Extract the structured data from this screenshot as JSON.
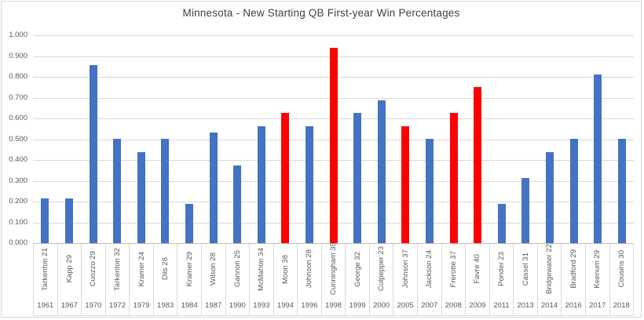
{
  "chart_data": {
    "type": "bar",
    "title": "Minnesota - New Starting QB First-year Win Percentages",
    "xlabel": "",
    "ylabel": "",
    "ylim": [
      0,
      1
    ],
    "grid": true,
    "legend_position": "none",
    "y_ticks": [
      {
        "value": 0.0,
        "label": "0.000"
      },
      {
        "value": 0.1,
        "label": "0.100"
      },
      {
        "value": 0.2,
        "label": "0.200"
      },
      {
        "value": 0.3,
        "label": "0.300"
      },
      {
        "value": 0.4,
        "label": "0.400"
      },
      {
        "value": 0.5,
        "label": "0.500"
      },
      {
        "value": 0.6,
        "label": "0.600"
      },
      {
        "value": 0.7,
        "label": "0.700"
      },
      {
        "value": 0.8,
        "label": "0.800"
      },
      {
        "value": 0.9,
        "label": "0.900"
      },
      {
        "value": 1.0,
        "label": "1.000"
      }
    ],
    "bars": [
      {
        "qb": "Tarkenton 21",
        "year": "1961",
        "value": 0.214,
        "highlighted": false
      },
      {
        "qb": "Kapp 29",
        "year": "1967",
        "value": 0.214,
        "highlighted": false
      },
      {
        "qb": "Cuozzo 29",
        "year": "1970",
        "value": 0.857,
        "highlighted": false
      },
      {
        "qb": "Tarkenton 32",
        "year": "1972",
        "value": 0.5,
        "highlighted": false
      },
      {
        "qb": "Kramer 24",
        "year": "1979",
        "value": 0.438,
        "highlighted": false
      },
      {
        "qb": "Dils 28",
        "year": "1983",
        "value": 0.5,
        "highlighted": false
      },
      {
        "qb": "Kramer 29",
        "year": "1984",
        "value": 0.188,
        "highlighted": false
      },
      {
        "qb": "Wilson 28",
        "year": "1987",
        "value": 0.533,
        "highlighted": false
      },
      {
        "qb": "Gannon 25",
        "year": "1990",
        "value": 0.375,
        "highlighted": false
      },
      {
        "qb": "McMahon 34",
        "year": "1993",
        "value": 0.563,
        "highlighted": false
      },
      {
        "qb": "Moon 38",
        "year": "1994",
        "value": 0.625,
        "highlighted": true
      },
      {
        "qb": "Johnson 28",
        "year": "1996",
        "value": 0.563,
        "highlighted": false
      },
      {
        "qb": "Cunningham 35",
        "year": "1998",
        "value": 0.938,
        "highlighted": true
      },
      {
        "qb": "George 32",
        "year": "1999",
        "value": 0.625,
        "highlighted": false
      },
      {
        "qb": "Culpepper 23",
        "year": "2000",
        "value": 0.688,
        "highlighted": false
      },
      {
        "qb": "Johnson 37",
        "year": "2005",
        "value": 0.563,
        "highlighted": true
      },
      {
        "qb": "Jackson 24",
        "year": "2007",
        "value": 0.5,
        "highlighted": false
      },
      {
        "qb": "Frerotte 37",
        "year": "2008",
        "value": 0.625,
        "highlighted": true
      },
      {
        "qb": "Favre 40",
        "year": "2009",
        "value": 0.75,
        "highlighted": true
      },
      {
        "qb": "Ponder 23",
        "year": "2011",
        "value": 0.188,
        "highlighted": false
      },
      {
        "qb": "Cassel 31",
        "year": "2013",
        "value": 0.313,
        "highlighted": false
      },
      {
        "qb": "Bridgewater 22",
        "year": "2014",
        "value": 0.438,
        "highlighted": false
      },
      {
        "qb": "Bradford 29",
        "year": "2016",
        "value": 0.5,
        "highlighted": false
      },
      {
        "qb": "Keenum 29",
        "year": "2017",
        "value": 0.813,
        "highlighted": false
      },
      {
        "qb": "Cousins 30",
        "year": "2018",
        "value": 0.5,
        "highlighted": false
      }
    ],
    "colors": {
      "bar_default": "#4472C4",
      "bar_highlight": "#FF0000",
      "gridline": "#D9D9D9",
      "axis_line": "#BFBFBF",
      "tick_text": "#595959",
      "title_text": "#404040",
      "frame_border": "#D9D9D9"
    }
  }
}
